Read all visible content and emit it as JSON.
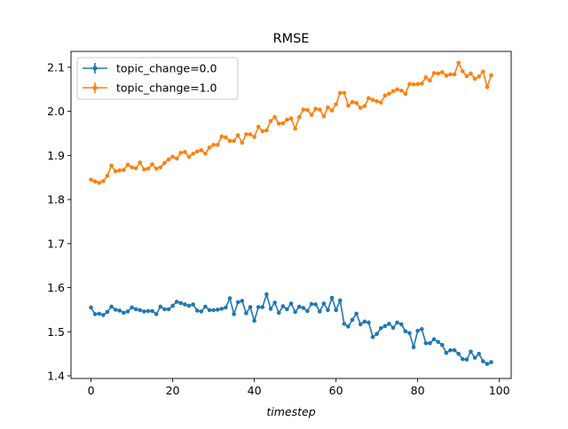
{
  "colors": {
    "series_0": "#1f77b4",
    "series_1": "#ff7f0e",
    "axes": "#000000",
    "background": "#ffffff",
    "legend_border": "#cccccc"
  },
  "chart_data": {
    "type": "line",
    "title": "RMSE",
    "xlabel": "timestep",
    "ylabel": "",
    "xlim": [
      -4.9,
      102.9
    ],
    "ylim": [
      1.394,
      2.136
    ],
    "xticks": [
      0,
      20,
      40,
      60,
      80,
      100
    ],
    "xtick_labels": [
      "0",
      "20",
      "40",
      "60",
      "80",
      "100"
    ],
    "yticks": [
      1.4,
      1.5,
      1.6,
      1.7,
      1.8,
      1.9,
      2.0,
      2.1
    ],
    "ytick_labels": [
      "1.4",
      "1.5",
      "1.6",
      "1.7",
      "1.8",
      "1.9",
      "2.0",
      "2.1"
    ],
    "grid": false,
    "legend_position": "upper-left",
    "series": [
      {
        "name": "topic_change=0.0",
        "color": "#1f77b4",
        "marker": "dot-with-errorbar",
        "x": [
          0,
          1,
          2,
          3,
          4,
          5,
          6,
          7,
          8,
          9,
          10,
          11,
          12,
          13,
          14,
          15,
          16,
          17,
          18,
          19,
          20,
          21,
          22,
          23,
          24,
          25,
          26,
          27,
          28,
          29,
          30,
          31,
          32,
          33,
          34,
          35,
          36,
          37,
          38,
          39,
          40,
          41,
          42,
          43,
          44,
          45,
          46,
          47,
          48,
          49,
          50,
          51,
          52,
          53,
          54,
          55,
          56,
          57,
          58,
          59,
          60,
          61,
          62,
          63,
          64,
          65,
          66,
          67,
          68,
          69,
          70,
          71,
          72,
          73,
          74,
          75,
          76,
          77,
          78,
          79,
          80,
          81,
          82,
          83,
          84,
          85,
          86,
          87,
          88,
          89,
          90,
          91,
          92,
          93,
          94,
          95,
          96,
          97,
          98
        ],
        "values": [
          1.555,
          1.54,
          1.541,
          1.538,
          1.545,
          1.557,
          1.55,
          1.548,
          1.543,
          1.546,
          1.555,
          1.551,
          1.549,
          1.546,
          1.547,
          1.547,
          1.54,
          1.557,
          1.551,
          1.551,
          1.559,
          1.568,
          1.565,
          1.562,
          1.559,
          1.562,
          1.548,
          1.546,
          1.557,
          1.549,
          1.549,
          1.55,
          1.552,
          1.555,
          1.576,
          1.54,
          1.567,
          1.57,
          1.542,
          1.556,
          1.525,
          1.556,
          1.556,
          1.585,
          1.552,
          1.566,
          1.543,
          1.558,
          1.551,
          1.564,
          1.545,
          1.557,
          1.554,
          1.547,
          1.563,
          1.562,
          1.546,
          1.564,
          1.549,
          1.577,
          1.549,
          1.571,
          1.518,
          1.512,
          1.527,
          1.541,
          1.517,
          1.523,
          1.521,
          1.488,
          1.495,
          1.508,
          1.513,
          1.518,
          1.509,
          1.521,
          1.517,
          1.501,
          1.497,
          1.465,
          1.502,
          1.506,
          1.474,
          1.474,
          1.483,
          1.477,
          1.47,
          1.452,
          1.458,
          1.458,
          1.45,
          1.438,
          1.437,
          1.455,
          1.441,
          1.45,
          1.433,
          1.427,
          1.431
        ]
      },
      {
        "name": "topic_change=1.0",
        "color": "#ff7f0e",
        "marker": "dot-with-errorbar",
        "x": [
          0,
          1,
          2,
          3,
          4,
          5,
          6,
          7,
          8,
          9,
          10,
          11,
          12,
          13,
          14,
          15,
          16,
          17,
          18,
          19,
          20,
          21,
          22,
          23,
          24,
          25,
          26,
          27,
          28,
          29,
          30,
          31,
          32,
          33,
          34,
          35,
          36,
          37,
          38,
          39,
          40,
          41,
          42,
          43,
          44,
          45,
          46,
          47,
          48,
          49,
          50,
          51,
          52,
          53,
          54,
          55,
          56,
          57,
          58,
          59,
          60,
          61,
          62,
          63,
          64,
          65,
          66,
          67,
          68,
          69,
          70,
          71,
          72,
          73,
          74,
          75,
          76,
          77,
          78,
          79,
          80,
          81,
          82,
          83,
          84,
          85,
          86,
          87,
          88,
          89,
          90,
          91,
          92,
          93,
          94,
          95,
          96,
          97,
          98
        ],
        "values": [
          1.845,
          1.841,
          1.838,
          1.842,
          1.854,
          1.877,
          1.864,
          1.866,
          1.867,
          1.879,
          1.873,
          1.871,
          1.884,
          1.868,
          1.87,
          1.88,
          1.87,
          1.873,
          1.883,
          1.891,
          1.897,
          1.893,
          1.906,
          1.908,
          1.897,
          1.904,
          1.909,
          1.912,
          1.904,
          1.918,
          1.924,
          1.924,
          1.943,
          1.941,
          1.933,
          1.933,
          1.946,
          1.929,
          1.948,
          1.948,
          1.942,
          1.965,
          1.955,
          1.957,
          1.978,
          1.987,
          1.972,
          1.973,
          1.981,
          1.984,
          1.961,
          1.987,
          2.004,
          2.003,
          1.992,
          2.006,
          2.004,
          1.989,
          2.009,
          2.002,
          2.016,
          2.042,
          2.042,
          2.013,
          2.021,
          2.019,
          2.008,
          2.012,
          2.03,
          2.026,
          2.023,
          2.02,
          2.036,
          2.04,
          2.046,
          2.05,
          2.047,
          2.04,
          2.062,
          2.061,
          2.062,
          2.063,
          2.077,
          2.07,
          2.087,
          2.086,
          2.089,
          2.081,
          2.084,
          2.084,
          2.11,
          2.091,
          2.08,
          2.086,
          2.074,
          2.079,
          2.09,
          2.055,
          2.082
        ]
      }
    ]
  }
}
